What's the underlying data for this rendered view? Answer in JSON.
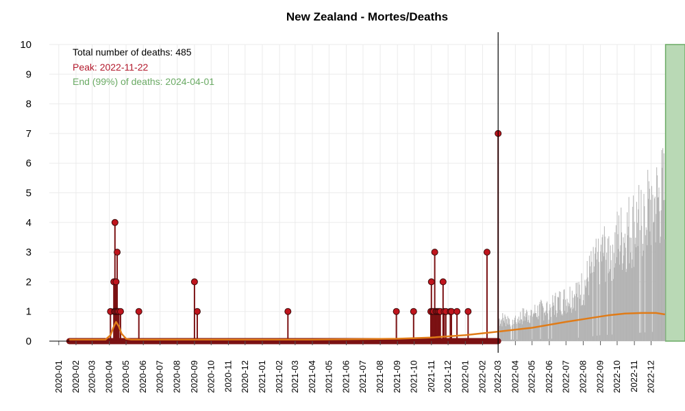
{
  "colors": {
    "observed": "#7b1113",
    "observed_point": "#c0151d",
    "fit_line": "#e07b17",
    "forecast_bar": "#b3b3b3",
    "peak_text": "#b2182b",
    "end_text": "#6aaa64",
    "end_band_fill": "#b9d9b5",
    "end_band_stroke": "#6aaa64",
    "grid": "#ebebeb"
  },
  "chart_data": {
    "type": "bar",
    "title": "New Zealand - Mortes/Deaths",
    "xlabel": "",
    "ylabel": "",
    "ylim": [
      0,
      10
    ],
    "yticks": [
      0,
      1,
      2,
      3,
      4,
      5,
      6,
      7,
      8,
      9,
      10
    ],
    "xlim": [
      "2019-12-15",
      "2023-01-31"
    ],
    "x_tick_labels": [
      "2020-01",
      "2020-02",
      "2020-03",
      "2020-04",
      "2020-05",
      "2020-06",
      "2020-07",
      "2020-08",
      "2020-09",
      "2020-10",
      "2020-11",
      "2020-12",
      "2021-01",
      "2021-02",
      "2021-03",
      "2021-04",
      "2021-05",
      "2021-06",
      "2021-07",
      "2021-08",
      "2021-09",
      "2021-10",
      "2021-11",
      "2021-12",
      "2022-01",
      "2022-02",
      "2022-03",
      "2022-04",
      "2022-05",
      "2022-06",
      "2022-07",
      "2022-08",
      "2022-09",
      "2022-10",
      "2022-11",
      "2022-12"
    ],
    "grid": true,
    "annotations": {
      "total": "Total number of deaths: 485",
      "peak": "Peak: 2022-11-22",
      "end": "End (99%) of deaths: 2024-04-01"
    },
    "cutoff_date": "2022-03-01",
    "end_band_start": "2022-12-27",
    "observed_start": "2020-01-20",
    "observed_nonzero": [
      {
        "date": "2020-04-03",
        "value": 1
      },
      {
        "date": "2020-04-09",
        "value": 2
      },
      {
        "date": "2020-04-10",
        "value": 1
      },
      {
        "date": "2020-04-11",
        "value": 4
      },
      {
        "date": "2020-04-12",
        "value": 1
      },
      {
        "date": "2020-04-13",
        "value": 2
      },
      {
        "date": "2020-04-14",
        "value": 1
      },
      {
        "date": "2020-04-15",
        "value": 3
      },
      {
        "date": "2020-04-16",
        "value": 1
      },
      {
        "date": "2020-04-18",
        "value": 1
      },
      {
        "date": "2020-04-21",
        "value": 1
      },
      {
        "date": "2020-05-24",
        "value": 1
      },
      {
        "date": "2020-09-01",
        "value": 2
      },
      {
        "date": "2020-09-06",
        "value": 1
      },
      {
        "date": "2021-02-16",
        "value": 1
      },
      {
        "date": "2021-08-30",
        "value": 1
      },
      {
        "date": "2021-09-30",
        "value": 1
      },
      {
        "date": "2021-10-31",
        "value": 1
      },
      {
        "date": "2021-11-01",
        "value": 2
      },
      {
        "date": "2021-11-03",
        "value": 1
      },
      {
        "date": "2021-11-05",
        "value": 1
      },
      {
        "date": "2021-11-07",
        "value": 3
      },
      {
        "date": "2021-11-09",
        "value": 1
      },
      {
        "date": "2021-11-11",
        "value": 1
      },
      {
        "date": "2021-11-13",
        "value": 1
      },
      {
        "date": "2021-11-15",
        "value": 1
      },
      {
        "date": "2021-11-17",
        "value": 1
      },
      {
        "date": "2021-11-22",
        "value": 2
      },
      {
        "date": "2021-11-24",
        "value": 1
      },
      {
        "date": "2021-11-27",
        "value": 1
      },
      {
        "date": "2021-12-05",
        "value": 1
      },
      {
        "date": "2021-12-07",
        "value": 1
      },
      {
        "date": "2021-12-17",
        "value": 1
      },
      {
        "date": "2022-01-06",
        "value": 1
      },
      {
        "date": "2022-02-09",
        "value": 3
      },
      {
        "date": "2022-03-01",
        "value": 7
      }
    ],
    "fit_curve": [
      {
        "date": "2020-01-20",
        "value": 0.05
      },
      {
        "date": "2020-03-25",
        "value": 0.05
      },
      {
        "date": "2020-04-03",
        "value": 0.2
      },
      {
        "date": "2020-04-08",
        "value": 0.45
      },
      {
        "date": "2020-04-13",
        "value": 0.65
      },
      {
        "date": "2020-04-18",
        "value": 0.5
      },
      {
        "date": "2020-04-23",
        "value": 0.25
      },
      {
        "date": "2020-05-01",
        "value": 0.08
      },
      {
        "date": "2020-05-10",
        "value": 0.05
      },
      {
        "date": "2021-04-01",
        "value": 0.05
      },
      {
        "date": "2021-09-01",
        "value": 0.08
      },
      {
        "date": "2021-11-01",
        "value": 0.12
      },
      {
        "date": "2022-01-01",
        "value": 0.2
      },
      {
        "date": "2022-03-01",
        "value": 0.32
      },
      {
        "date": "2022-05-01",
        "value": 0.45
      },
      {
        "date": "2022-07-01",
        "value": 0.65
      },
      {
        "date": "2022-08-15",
        "value": 0.78
      },
      {
        "date": "2022-09-15",
        "value": 0.87
      },
      {
        "date": "2022-10-15",
        "value": 0.93
      },
      {
        "date": "2022-11-15",
        "value": 0.95
      },
      {
        "date": "2022-12-10",
        "value": 0.95
      },
      {
        "date": "2022-12-26",
        "value": 0.9
      }
    ],
    "forecast_envelope": [
      {
        "date": "2022-03-02",
        "value": 1.0
      },
      {
        "date": "2022-04-01",
        "value": 1.05
      },
      {
        "date": "2022-05-01",
        "value": 1.3
      },
      {
        "date": "2022-06-01",
        "value": 1.6
      },
      {
        "date": "2022-07-01",
        "value": 1.95
      },
      {
        "date": "2022-08-01",
        "value": 2.5
      },
      {
        "date": "2022-08-15",
        "value": 3.2
      },
      {
        "date": "2022-09-01",
        "value": 4.0
      },
      {
        "date": "2022-10-01",
        "value": 4.6
      },
      {
        "date": "2022-11-01",
        "value": 5.4
      },
      {
        "date": "2022-12-01",
        "value": 6.2
      },
      {
        "date": "2022-12-26",
        "value": 6.9
      }
    ]
  }
}
